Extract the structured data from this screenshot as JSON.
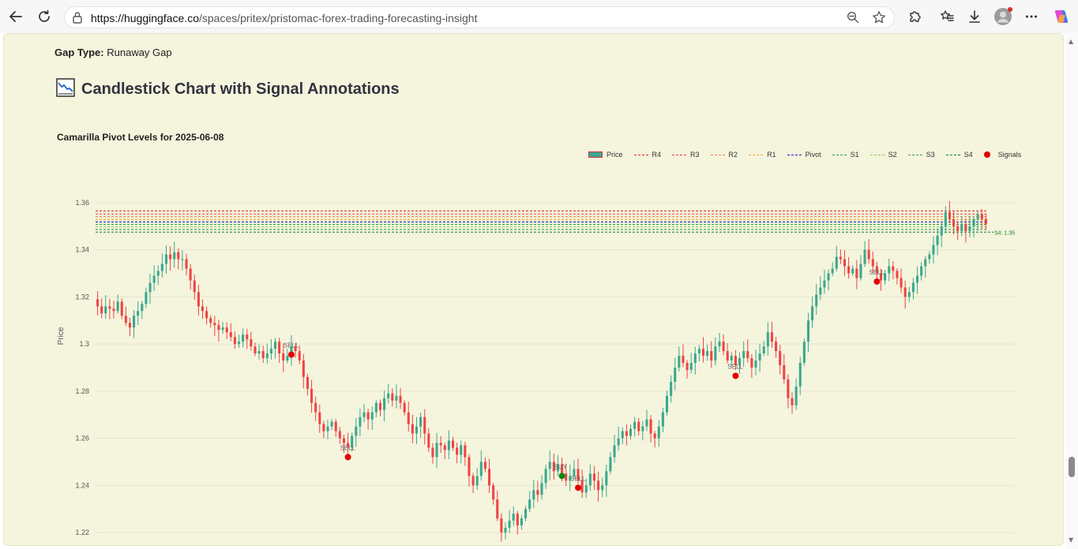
{
  "browser": {
    "url_host": "https://huggingface.co",
    "url_path": "/spaces/pritex/pristomac-forex-trading-forecasting-insight",
    "icons": [
      "back-icon",
      "refresh-icon",
      "lock-icon",
      "zoom-icon",
      "favorite-star-icon",
      "extensions-icon",
      "favorites-icon",
      "downloads-icon",
      "profile-avatar",
      "more-icon",
      "copilot-icon"
    ]
  },
  "page": {
    "gap_label": "Gap Type:",
    "gap_value": "Runaway Gap",
    "section_title": "Candlestick Chart with Signal Annotations",
    "section_icon": "chart-decreasing-emoji"
  },
  "chart_data": {
    "type": "candlestick",
    "title": "Camarilla Pivot Levels for 2025-06-08",
    "ylabel": "Price",
    "ylim": [
      1.214,
      1.366
    ],
    "yticks": [
      "1.22",
      "1.24",
      "1.26",
      "1.28",
      "1.3",
      "1.32",
      "1.34",
      "1.36"
    ],
    "ytick_values": [
      1.22,
      1.24,
      1.26,
      1.28,
      1.3,
      1.32,
      1.34,
      1.36
    ],
    "legend": [
      {
        "name": "Price",
        "color": "#3aa88e",
        "kind": "candle"
      },
      {
        "name": "R4",
        "color": "#d62728",
        "kind": "line"
      },
      {
        "name": "R3",
        "color": "#e8443a",
        "kind": "line"
      },
      {
        "name": "R2",
        "color": "#f07b3f",
        "kind": "line"
      },
      {
        "name": "R1",
        "color": "#f5a623",
        "kind": "line"
      },
      {
        "name": "Pivot",
        "color": "#1f1fd6",
        "kind": "line"
      },
      {
        "name": "S1",
        "color": "#2ca02c",
        "kind": "line"
      },
      {
        "name": "S2",
        "color": "#7fd34f",
        "kind": "line"
      },
      {
        "name": "S3",
        "color": "#3a9a6a",
        "kind": "line"
      },
      {
        "name": "S4",
        "color": "#1a7a1a",
        "kind": "line"
      },
      {
        "name": "Signals",
        "color": "#e00000",
        "kind": "dot"
      }
    ],
    "levels": [
      {
        "name": "R4",
        "value": 1.3565,
        "color": "#d62728"
      },
      {
        "name": "R3",
        "value": 1.3552,
        "color": "#e8443a"
      },
      {
        "name": "R2",
        "value": 1.354,
        "color": "#f07b3f"
      },
      {
        "name": "R1",
        "value": 1.3528,
        "color": "#f5a623"
      },
      {
        "name": "Pivot",
        "value": 1.3518,
        "color": "#1f1fd6"
      },
      {
        "name": "S1",
        "value": 1.3508,
        "color": "#2ca02c"
      },
      {
        "name": "S2",
        "value": 1.3497,
        "color": "#7fd34f"
      },
      {
        "name": "S3",
        "value": 1.3486,
        "color": "#3a9a6a"
      },
      {
        "name": "S4",
        "value": 1.3475,
        "color": "#1a7a1a"
      }
    ],
    "s4_label": "S4: 1.35",
    "up_color": "#3aa88e",
    "down_color": "#ef4444",
    "closes": [
      1.316,
      1.313,
      1.316,
      1.315,
      1.314,
      1.318,
      1.312,
      1.309,
      1.307,
      1.312,
      1.314,
      1.317,
      1.322,
      1.326,
      1.329,
      1.331,
      1.334,
      1.338,
      1.336,
      1.339,
      1.336,
      1.336,
      1.332,
      1.327,
      1.322,
      1.316,
      1.314,
      1.311,
      1.309,
      1.308,
      1.306,
      1.307,
      1.305,
      1.303,
      1.3,
      1.301,
      1.304,
      1.302,
      1.299,
      1.296,
      1.297,
      1.294,
      1.296,
      1.298,
      1.301,
      1.296,
      1.293,
      1.295,
      1.299,
      1.297,
      1.293,
      1.286,
      1.281,
      1.275,
      1.271,
      1.266,
      1.263,
      1.265,
      1.267,
      1.263,
      1.26,
      1.258,
      1.256,
      1.261,
      1.265,
      1.269,
      1.271,
      1.268,
      1.271,
      1.275,
      1.272,
      1.277,
      1.279,
      1.276,
      1.278,
      1.275,
      1.271,
      1.266,
      1.262,
      1.265,
      1.269,
      1.262,
      1.256,
      1.252,
      1.258,
      1.257,
      1.255,
      1.259,
      1.256,
      1.253,
      1.257,
      1.252,
      1.244,
      1.24,
      1.244,
      1.25,
      1.247,
      1.24,
      1.234,
      1.226,
      1.22,
      1.222,
      1.225,
      1.228,
      1.223,
      1.226,
      1.23,
      1.234,
      1.238,
      1.236,
      1.241,
      1.247,
      1.25,
      1.246,
      1.249,
      1.245,
      1.242,
      1.244,
      1.247,
      1.242,
      1.237,
      1.24,
      1.245,
      1.242,
      1.238,
      1.24,
      1.246,
      1.252,
      1.257,
      1.26,
      1.263,
      1.261,
      1.264,
      1.267,
      1.263,
      1.265,
      1.268,
      1.262,
      1.26,
      1.265,
      1.271,
      1.278,
      1.284,
      1.29,
      1.295,
      1.292,
      1.289,
      1.292,
      1.296,
      1.298,
      1.295,
      1.297,
      1.293,
      1.299,
      1.301,
      1.297,
      1.293,
      1.295,
      1.291,
      1.294,
      1.297,
      1.294,
      1.29,
      1.293,
      1.296,
      1.299,
      1.305,
      1.301,
      1.297,
      1.291,
      1.285,
      1.277,
      1.274,
      1.282,
      1.292,
      1.301,
      1.31,
      1.316,
      1.321,
      1.324,
      1.327,
      1.33,
      1.332,
      1.337,
      1.336,
      1.333,
      1.33,
      1.332,
      1.328,
      1.334,
      1.34,
      1.336,
      1.333,
      1.33,
      1.327,
      1.33,
      1.333,
      1.331,
      1.328,
      1.324,
      1.32,
      1.322,
      1.326,
      1.329,
      1.333,
      1.336,
      1.338,
      1.342,
      1.346,
      1.35,
      1.356,
      1.353,
      1.35,
      1.348,
      1.351,
      1.348,
      1.35,
      1.353,
      1.355,
      1.353,
      1.351
    ]
  },
  "signals": [
    {
      "label": "SELL",
      "color": "#e00000"
    },
    {
      "label": "SELL",
      "color": "#e00000"
    },
    {
      "label": "BUY",
      "color": "#0a8a0a"
    },
    {
      "label": "SELL",
      "color": "#e00000"
    },
    {
      "label": "SELL",
      "color": "#e00000"
    },
    {
      "label": "SELL",
      "color": "#e00000"
    }
  ]
}
